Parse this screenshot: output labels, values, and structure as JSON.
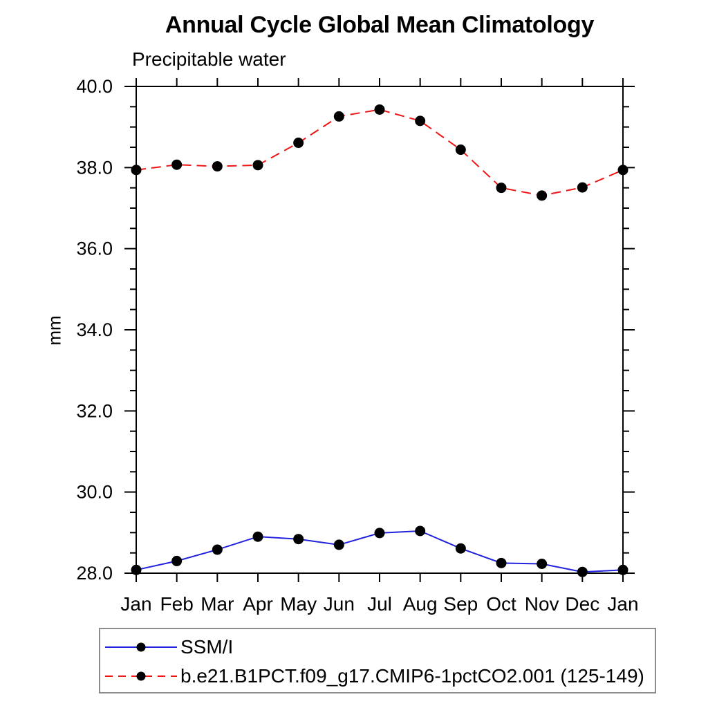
{
  "chart_data": {
    "type": "line",
    "title": "Annual Cycle Global Mean Climatology",
    "subtitle": "Precipitable water",
    "ylabel": "mm",
    "xlabel": "",
    "categories": [
      "Jan",
      "Feb",
      "Mar",
      "Apr",
      "May",
      "Jun",
      "Jul",
      "Aug",
      "Sep",
      "Oct",
      "Nov",
      "Dec",
      "Jan"
    ],
    "ylim": [
      28.0,
      40.0
    ],
    "ytick_step": 2.0,
    "yminor_step": 0.5,
    "ytick_decimals": 1,
    "grid": false,
    "legend_position": "bottom-left-outside",
    "axis_color": "#000000",
    "marker_color": "#000000",
    "series": [
      {
        "name": "SSM/I",
        "color": "#2222dd",
        "line_style": "solid",
        "marker": "circle",
        "values": [
          28.08,
          28.3,
          28.58,
          28.9,
          28.84,
          28.7,
          28.99,
          29.04,
          28.61,
          28.25,
          28.23,
          28.03,
          28.08
        ]
      },
      {
        "name": "b.e21.B1PCT.f09_g17.CMIP6-1pctCO2.001 (125-149)",
        "color": "#f01414",
        "line_style": "dashed",
        "marker": "circle",
        "values": [
          37.94,
          38.07,
          38.03,
          38.06,
          38.61,
          39.26,
          39.43,
          39.15,
          38.44,
          37.5,
          37.31,
          37.51,
          37.94
        ]
      }
    ]
  }
}
